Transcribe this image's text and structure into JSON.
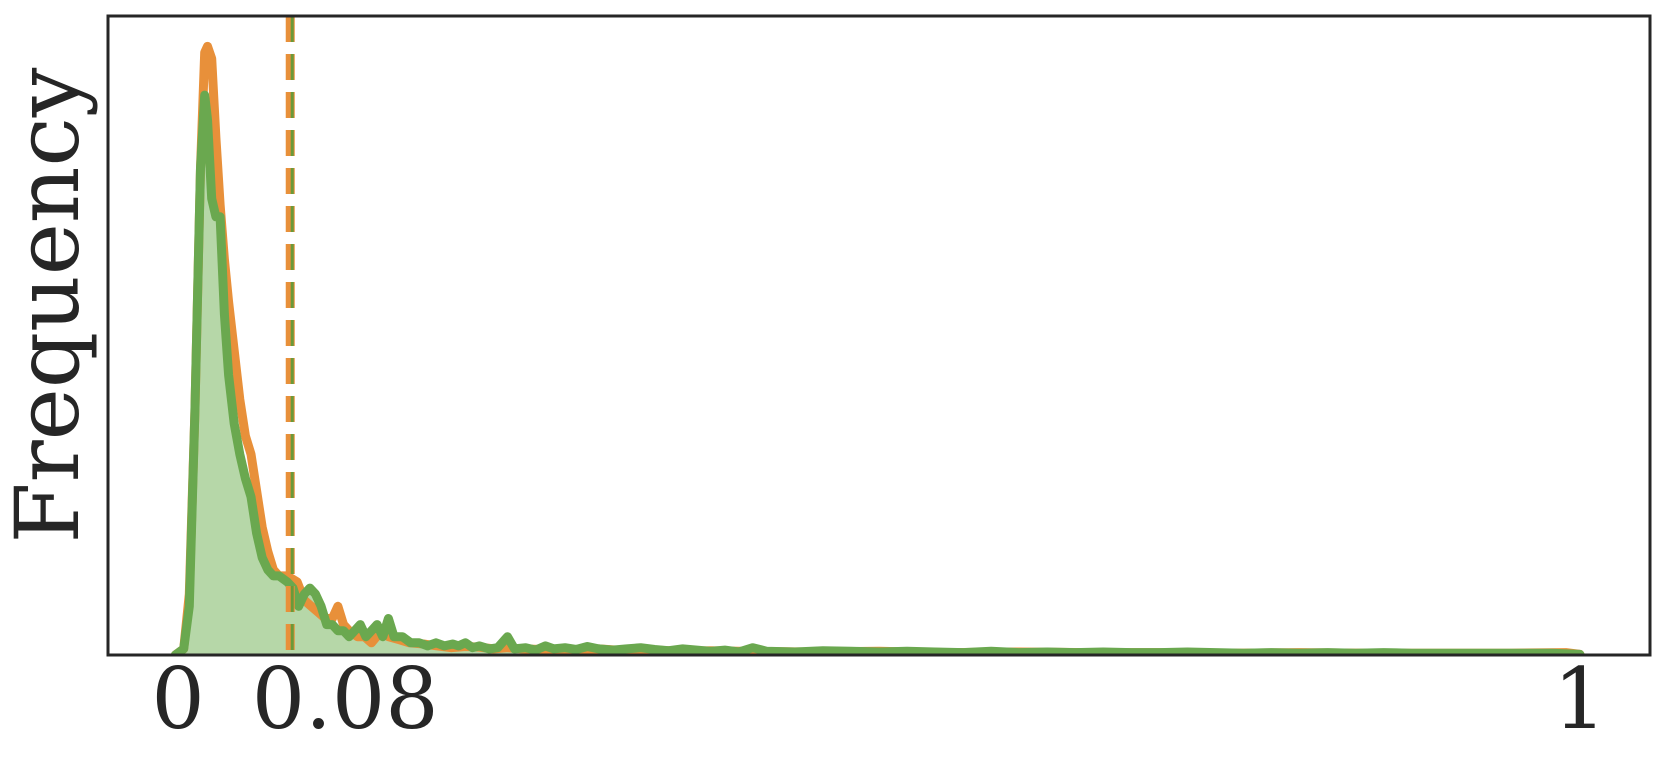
{
  "chart_data": {
    "type": "area",
    "title": "",
    "xlabel": "",
    "ylabel": "Frequency",
    "xlim": [
      -0.05,
      1.05
    ],
    "ylim": [
      0,
      1.05
    ],
    "xticks": [
      {
        "value": 0,
        "label": "0"
      },
      {
        "value": 0.08,
        "label": "0.08"
      },
      {
        "value": 1,
        "label": "1"
      }
    ],
    "yticks": [],
    "grid": false,
    "legend": "none",
    "threshold": {
      "x": 0.08,
      "style": "dashed",
      "color": "#6a9a3a"
    },
    "series": [
      {
        "color": "#e8903a",
        "fill": false,
        "points": [
          [
            -0.002,
            0
          ],
          [
            0.004,
            0.01
          ],
          [
            0.008,
            0.1
          ],
          [
            0.012,
            0.4
          ],
          [
            0.016,
            0.8
          ],
          [
            0.019,
            0.99
          ],
          [
            0.021,
            1.0
          ],
          [
            0.024,
            0.98
          ],
          [
            0.027,
            0.85
          ],
          [
            0.03,
            0.74
          ],
          [
            0.033,
            0.65
          ],
          [
            0.036,
            0.58
          ],
          [
            0.04,
            0.5
          ],
          [
            0.044,
            0.42
          ],
          [
            0.048,
            0.36
          ],
          [
            0.052,
            0.33
          ],
          [
            0.056,
            0.27
          ],
          [
            0.06,
            0.21
          ],
          [
            0.064,
            0.17
          ],
          [
            0.068,
            0.14
          ],
          [
            0.072,
            0.13
          ],
          [
            0.078,
            0.13
          ],
          [
            0.085,
            0.12
          ],
          [
            0.09,
            0.09
          ],
          [
            0.095,
            0.08
          ],
          [
            0.1,
            0.07
          ],
          [
            0.105,
            0.06
          ],
          [
            0.11,
            0.06
          ],
          [
            0.114,
            0.08
          ],
          [
            0.118,
            0.05
          ],
          [
            0.122,
            0.04
          ],
          [
            0.128,
            0.03
          ],
          [
            0.133,
            0.03
          ],
          [
            0.138,
            0.02
          ],
          [
            0.145,
            0.04
          ],
          [
            0.15,
            0.03
          ],
          [
            0.158,
            0.025
          ],
          [
            0.165,
            0.02
          ],
          [
            0.175,
            0.018
          ],
          [
            0.185,
            0.015
          ],
          [
            0.195,
            0.012
          ],
          [
            0.205,
            0.014
          ],
          [
            0.215,
            0.013
          ],
          [
            0.225,
            0.01
          ],
          [
            0.235,
            0.012
          ],
          [
            0.245,
            0.01
          ],
          [
            0.26,
            0.009
          ],
          [
            0.28,
            0.008
          ],
          [
            0.3,
            0.01
          ],
          [
            0.32,
            0.007
          ],
          [
            0.34,
            0.008
          ],
          [
            0.36,
            0.006
          ],
          [
            0.38,
            0.007
          ],
          [
            0.4,
            0.006
          ],
          [
            0.45,
            0.005
          ],
          [
            0.5,
            0.006
          ],
          [
            0.55,
            0.004
          ],
          [
            0.6,
            0.005
          ],
          [
            0.65,
            0.004
          ],
          [
            0.7,
            0.004
          ],
          [
            0.75,
            0.003
          ],
          [
            0.8,
            0.004
          ],
          [
            0.85,
            0.003
          ],
          [
            0.9,
            0.003
          ],
          [
            0.95,
            0.003
          ],
          [
            0.99,
            0.004
          ],
          [
            1.0,
            0.001
          ]
        ]
      },
      {
        "color": "#6aa84f",
        "fill": true,
        "fill_color": "#b6d7a8",
        "points": [
          [
            -0.002,
            0
          ],
          [
            0.004,
            0.01
          ],
          [
            0.008,
            0.08
          ],
          [
            0.012,
            0.4
          ],
          [
            0.016,
            0.8
          ],
          [
            0.019,
            0.92
          ],
          [
            0.021,
            0.88
          ],
          [
            0.024,
            0.75
          ],
          [
            0.027,
            0.72
          ],
          [
            0.03,
            0.72
          ],
          [
            0.033,
            0.56
          ],
          [
            0.036,
            0.46
          ],
          [
            0.04,
            0.38
          ],
          [
            0.044,
            0.33
          ],
          [
            0.048,
            0.29
          ],
          [
            0.052,
            0.26
          ],
          [
            0.056,
            0.2
          ],
          [
            0.06,
            0.16
          ],
          [
            0.064,
            0.14
          ],
          [
            0.068,
            0.13
          ],
          [
            0.072,
            0.13
          ],
          [
            0.078,
            0.12
          ],
          [
            0.082,
            0.11
          ],
          [
            0.086,
            0.08
          ],
          [
            0.09,
            0.1
          ],
          [
            0.094,
            0.11
          ],
          [
            0.098,
            0.1
          ],
          [
            0.102,
            0.08
          ],
          [
            0.106,
            0.05
          ],
          [
            0.11,
            0.05
          ],
          [
            0.114,
            0.04
          ],
          [
            0.118,
            0.04
          ],
          [
            0.122,
            0.03
          ],
          [
            0.126,
            0.04
          ],
          [
            0.13,
            0.05
          ],
          [
            0.134,
            0.03
          ],
          [
            0.138,
            0.04
          ],
          [
            0.142,
            0.05
          ],
          [
            0.146,
            0.03
          ],
          [
            0.15,
            0.06
          ],
          [
            0.154,
            0.03
          ],
          [
            0.16,
            0.03
          ],
          [
            0.166,
            0.02
          ],
          [
            0.172,
            0.02
          ],
          [
            0.178,
            0.015
          ],
          [
            0.184,
            0.02
          ],
          [
            0.19,
            0.015
          ],
          [
            0.196,
            0.018
          ],
          [
            0.2,
            0.015
          ],
          [
            0.205,
            0.02
          ],
          [
            0.21,
            0.012
          ],
          [
            0.215,
            0.015
          ],
          [
            0.222,
            0.01
          ],
          [
            0.228,
            0.012
          ],
          [
            0.235,
            0.03
          ],
          [
            0.24,
            0.01
          ],
          [
            0.248,
            0.012
          ],
          [
            0.255,
            0.008
          ],
          [
            0.262,
            0.015
          ],
          [
            0.268,
            0.01
          ],
          [
            0.276,
            0.012
          ],
          [
            0.284,
            0.009
          ],
          [
            0.292,
            0.014
          ],
          [
            0.3,
            0.01
          ],
          [
            0.31,
            0.008
          ],
          [
            0.32,
            0.01
          ],
          [
            0.33,
            0.012
          ],
          [
            0.34,
            0.009
          ],
          [
            0.35,
            0.007
          ],
          [
            0.36,
            0.01
          ],
          [
            0.37,
            0.008
          ],
          [
            0.38,
            0.006
          ],
          [
            0.39,
            0.008
          ],
          [
            0.4,
            0.005
          ],
          [
            0.41,
            0.012
          ],
          [
            0.42,
            0.006
          ],
          [
            0.44,
            0.005
          ],
          [
            0.46,
            0.007
          ],
          [
            0.48,
            0.006
          ],
          [
            0.5,
            0.005
          ],
          [
            0.52,
            0.006
          ],
          [
            0.54,
            0.005
          ],
          [
            0.56,
            0.004
          ],
          [
            0.58,
            0.006
          ],
          [
            0.6,
            0.004
          ],
          [
            0.62,
            0.005
          ],
          [
            0.64,
            0.004
          ],
          [
            0.66,
            0.005
          ],
          [
            0.68,
            0.004
          ],
          [
            0.7,
            0.004
          ],
          [
            0.72,
            0.005
          ],
          [
            0.74,
            0.004
          ],
          [
            0.76,
            0.003
          ],
          [
            0.78,
            0.004
          ],
          [
            0.8,
            0.003
          ],
          [
            0.82,
            0.004
          ],
          [
            0.84,
            0.003
          ],
          [
            0.86,
            0.004
          ],
          [
            0.88,
            0.003
          ],
          [
            0.9,
            0.003
          ],
          [
            0.92,
            0.003
          ],
          [
            0.94,
            0.003
          ],
          [
            0.96,
            0.003
          ],
          [
            0.98,
            0.003
          ],
          [
            1.0,
            0.001
          ]
        ]
      }
    ]
  }
}
